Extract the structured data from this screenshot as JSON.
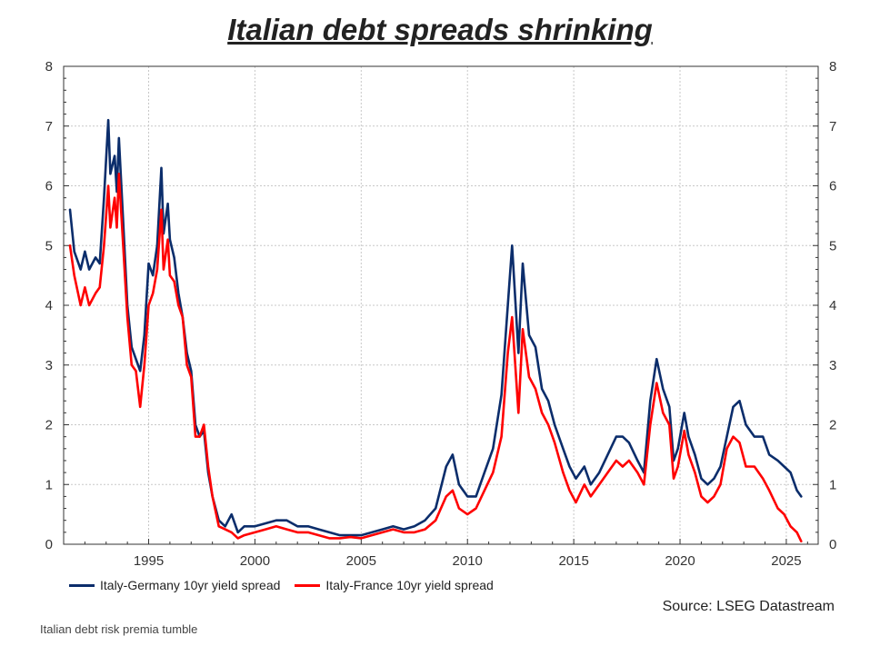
{
  "title": "Italian debt spreads shrinking",
  "source": "Source: LSEG Datastream",
  "caption": "Italian debt risk premia tumble",
  "colors": {
    "germany": "#0b2d6b",
    "france": "#ff0000",
    "grid": "#c8c8c8",
    "axis": "#333333"
  },
  "chart_data": {
    "type": "line",
    "title": "Italian debt spreads shrinking",
    "xlim": [
      1991.0,
      2026.5
    ],
    "ylim": [
      0,
      8
    ],
    "x_ticks": [
      1995,
      2000,
      2005,
      2010,
      2015,
      2020,
      2025
    ],
    "y_ticks": [
      0,
      1,
      2,
      3,
      4,
      5,
      6,
      7,
      8
    ],
    "grid": true,
    "legend_position": "bottom-left",
    "series": [
      {
        "name": "Italy-Germany 10yr yield spread",
        "color": "#0b2d6b",
        "points": [
          [
            1991.3,
            5.6
          ],
          [
            1991.5,
            4.9
          ],
          [
            1991.8,
            4.6
          ],
          [
            1992.0,
            4.9
          ],
          [
            1992.2,
            4.6
          ],
          [
            1992.5,
            4.8
          ],
          [
            1992.7,
            4.7
          ],
          [
            1992.9,
            5.8
          ],
          [
            1993.1,
            7.1
          ],
          [
            1993.2,
            6.2
          ],
          [
            1993.4,
            6.5
          ],
          [
            1993.5,
            5.9
          ],
          [
            1993.6,
            6.8
          ],
          [
            1993.8,
            5.4
          ],
          [
            1994.0,
            4.0
          ],
          [
            1994.2,
            3.3
          ],
          [
            1994.4,
            3.1
          ],
          [
            1994.6,
            2.9
          ],
          [
            1994.8,
            3.5
          ],
          [
            1995.0,
            4.7
          ],
          [
            1995.2,
            4.5
          ],
          [
            1995.4,
            5.0
          ],
          [
            1995.6,
            6.3
          ],
          [
            1995.7,
            5.2
          ],
          [
            1995.9,
            5.7
          ],
          [
            1996.0,
            5.1
          ],
          [
            1996.2,
            4.8
          ],
          [
            1996.4,
            4.2
          ],
          [
            1996.6,
            3.8
          ],
          [
            1996.8,
            3.2
          ],
          [
            1997.0,
            2.9
          ],
          [
            1997.2,
            2.0
          ],
          [
            1997.4,
            1.8
          ],
          [
            1997.6,
            1.9
          ],
          [
            1997.8,
            1.2
          ],
          [
            1998.0,
            0.8
          ],
          [
            1998.3,
            0.4
          ],
          [
            1998.6,
            0.3
          ],
          [
            1998.9,
            0.5
          ],
          [
            1999.2,
            0.2
          ],
          [
            1999.5,
            0.3
          ],
          [
            2000.0,
            0.3
          ],
          [
            2000.5,
            0.35
          ],
          [
            2001.0,
            0.4
          ],
          [
            2001.5,
            0.4
          ],
          [
            2002.0,
            0.3
          ],
          [
            2002.5,
            0.3
          ],
          [
            2003.0,
            0.25
          ],
          [
            2003.5,
            0.2
          ],
          [
            2004.0,
            0.15
          ],
          [
            2004.5,
            0.15
          ],
          [
            2005.0,
            0.15
          ],
          [
            2005.5,
            0.2
          ],
          [
            2006.0,
            0.25
          ],
          [
            2006.5,
            0.3
          ],
          [
            2007.0,
            0.25
          ],
          [
            2007.5,
            0.3
          ],
          [
            2008.0,
            0.4
          ],
          [
            2008.5,
            0.6
          ],
          [
            2009.0,
            1.3
          ],
          [
            2009.3,
            1.5
          ],
          [
            2009.6,
            1.0
          ],
          [
            2010.0,
            0.8
          ],
          [
            2010.4,
            0.8
          ],
          [
            2010.8,
            1.2
          ],
          [
            2011.2,
            1.6
          ],
          [
            2011.6,
            2.5
          ],
          [
            2011.9,
            4.0
          ],
          [
            2012.1,
            5.0
          ],
          [
            2012.4,
            3.2
          ],
          [
            2012.6,
            4.7
          ],
          [
            2012.9,
            3.5
          ],
          [
            2013.2,
            3.3
          ],
          [
            2013.5,
            2.6
          ],
          [
            2013.8,
            2.4
          ],
          [
            2014.1,
            2.0
          ],
          [
            2014.5,
            1.6
          ],
          [
            2014.8,
            1.3
          ],
          [
            2015.1,
            1.1
          ],
          [
            2015.5,
            1.3
          ],
          [
            2015.8,
            1.0
          ],
          [
            2016.2,
            1.2
          ],
          [
            2016.6,
            1.5
          ],
          [
            2017.0,
            1.8
          ],
          [
            2017.3,
            1.8
          ],
          [
            2017.6,
            1.7
          ],
          [
            2018.0,
            1.4
          ],
          [
            2018.3,
            1.2
          ],
          [
            2018.6,
            2.4
          ],
          [
            2018.9,
            3.1
          ],
          [
            2019.2,
            2.6
          ],
          [
            2019.5,
            2.3
          ],
          [
            2019.7,
            1.4
          ],
          [
            2019.9,
            1.6
          ],
          [
            2020.2,
            2.2
          ],
          [
            2020.4,
            1.8
          ],
          [
            2020.7,
            1.5
          ],
          [
            2021.0,
            1.1
          ],
          [
            2021.3,
            1.0
          ],
          [
            2021.6,
            1.1
          ],
          [
            2021.9,
            1.3
          ],
          [
            2022.2,
            1.8
          ],
          [
            2022.5,
            2.3
          ],
          [
            2022.8,
            2.4
          ],
          [
            2023.1,
            2.0
          ],
          [
            2023.5,
            1.8
          ],
          [
            2023.9,
            1.8
          ],
          [
            2024.2,
            1.5
          ],
          [
            2024.6,
            1.4
          ],
          [
            2024.9,
            1.3
          ],
          [
            2025.2,
            1.2
          ],
          [
            2025.5,
            0.9
          ],
          [
            2025.7,
            0.8
          ]
        ]
      },
      {
        "name": "Italy-France 10yr yield spread",
        "color": "#ff0000",
        "points": [
          [
            1991.3,
            5.0
          ],
          [
            1991.5,
            4.5
          ],
          [
            1991.8,
            4.0
          ],
          [
            1992.0,
            4.3
          ],
          [
            1992.2,
            4.0
          ],
          [
            1992.5,
            4.2
          ],
          [
            1992.7,
            4.3
          ],
          [
            1992.9,
            5.0
          ],
          [
            1993.1,
            6.0
          ],
          [
            1993.2,
            5.3
          ],
          [
            1993.4,
            5.8
          ],
          [
            1993.5,
            5.3
          ],
          [
            1993.6,
            6.2
          ],
          [
            1993.8,
            5.0
          ],
          [
            1994.0,
            3.8
          ],
          [
            1994.2,
            3.0
          ],
          [
            1994.4,
            2.9
          ],
          [
            1994.6,
            2.3
          ],
          [
            1994.8,
            3.0
          ],
          [
            1995.0,
            4.0
          ],
          [
            1995.2,
            4.2
          ],
          [
            1995.4,
            4.6
          ],
          [
            1995.6,
            5.6
          ],
          [
            1995.7,
            4.6
          ],
          [
            1995.9,
            5.1
          ],
          [
            1996.0,
            4.5
          ],
          [
            1996.2,
            4.4
          ],
          [
            1996.4,
            4.0
          ],
          [
            1996.6,
            3.8
          ],
          [
            1996.8,
            3.0
          ],
          [
            1997.0,
            2.8
          ],
          [
            1997.2,
            1.8
          ],
          [
            1997.4,
            1.8
          ],
          [
            1997.6,
            2.0
          ],
          [
            1997.8,
            1.3
          ],
          [
            1998.0,
            0.8
          ],
          [
            1998.3,
            0.3
          ],
          [
            1998.6,
            0.25
          ],
          [
            1998.9,
            0.2
          ],
          [
            1999.2,
            0.1
          ],
          [
            1999.5,
            0.15
          ],
          [
            2000.0,
            0.2
          ],
          [
            2000.5,
            0.25
          ],
          [
            2001.0,
            0.3
          ],
          [
            2001.5,
            0.25
          ],
          [
            2002.0,
            0.2
          ],
          [
            2002.5,
            0.2
          ],
          [
            2003.0,
            0.15
          ],
          [
            2003.5,
            0.1
          ],
          [
            2004.0,
            0.1
          ],
          [
            2004.5,
            0.12
          ],
          [
            2005.0,
            0.1
          ],
          [
            2005.5,
            0.15
          ],
          [
            2006.0,
            0.2
          ],
          [
            2006.5,
            0.25
          ],
          [
            2007.0,
            0.2
          ],
          [
            2007.5,
            0.2
          ],
          [
            2008.0,
            0.25
          ],
          [
            2008.5,
            0.4
          ],
          [
            2009.0,
            0.8
          ],
          [
            2009.3,
            0.9
          ],
          [
            2009.6,
            0.6
          ],
          [
            2010.0,
            0.5
          ],
          [
            2010.4,
            0.6
          ],
          [
            2010.8,
            0.9
          ],
          [
            2011.2,
            1.2
          ],
          [
            2011.6,
            1.8
          ],
          [
            2011.9,
            3.2
          ],
          [
            2012.1,
            3.8
          ],
          [
            2012.4,
            2.2
          ],
          [
            2012.6,
            3.6
          ],
          [
            2012.9,
            2.8
          ],
          [
            2013.2,
            2.6
          ],
          [
            2013.5,
            2.2
          ],
          [
            2013.8,
            2.0
          ],
          [
            2014.1,
            1.7
          ],
          [
            2014.5,
            1.2
          ],
          [
            2014.8,
            0.9
          ],
          [
            2015.1,
            0.7
          ],
          [
            2015.5,
            1.0
          ],
          [
            2015.8,
            0.8
          ],
          [
            2016.2,
            1.0
          ],
          [
            2016.6,
            1.2
          ],
          [
            2017.0,
            1.4
          ],
          [
            2017.3,
            1.3
          ],
          [
            2017.6,
            1.4
          ],
          [
            2018.0,
            1.2
          ],
          [
            2018.3,
            1.0
          ],
          [
            2018.6,
            2.0
          ],
          [
            2018.9,
            2.7
          ],
          [
            2019.2,
            2.2
          ],
          [
            2019.5,
            2.0
          ],
          [
            2019.7,
            1.1
          ],
          [
            2019.9,
            1.3
          ],
          [
            2020.2,
            1.9
          ],
          [
            2020.4,
            1.5
          ],
          [
            2020.7,
            1.2
          ],
          [
            2021.0,
            0.8
          ],
          [
            2021.3,
            0.7
          ],
          [
            2021.6,
            0.8
          ],
          [
            2021.9,
            1.0
          ],
          [
            2022.2,
            1.6
          ],
          [
            2022.5,
            1.8
          ],
          [
            2022.8,
            1.7
          ],
          [
            2023.1,
            1.3
          ],
          [
            2023.5,
            1.3
          ],
          [
            2023.9,
            1.1
          ],
          [
            2024.2,
            0.9
          ],
          [
            2024.6,
            0.6
          ],
          [
            2024.9,
            0.5
          ],
          [
            2025.2,
            0.3
          ],
          [
            2025.5,
            0.2
          ],
          [
            2025.7,
            0.05
          ]
        ]
      }
    ]
  }
}
